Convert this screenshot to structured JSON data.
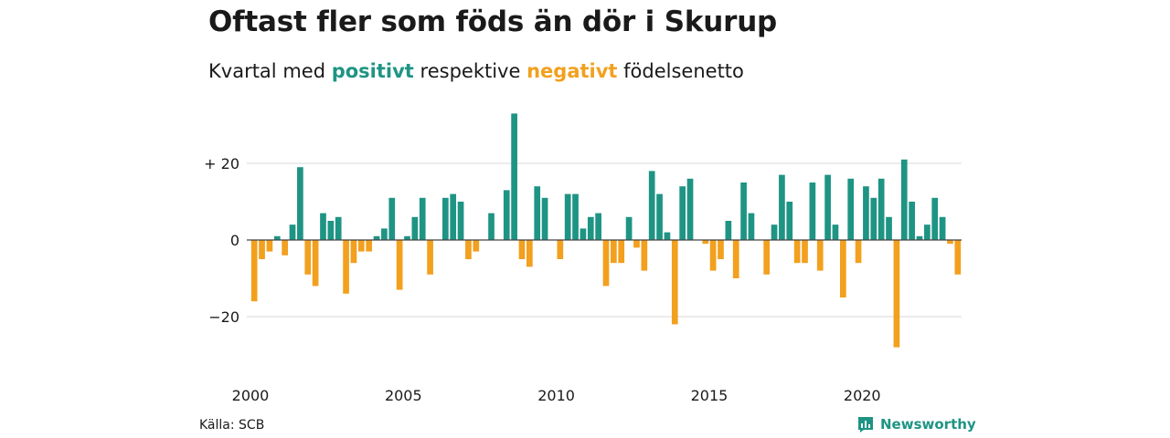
{
  "title": "Oftast fler som föds än dör i Skurup",
  "subtitle": {
    "pre": "Kvartal med",
    "positive": "positivt",
    "mid": "respektive",
    "negative": "negativt",
    "post": "födelsenetto"
  },
  "source": "Källa: SCB",
  "brand": "Newsworthy",
  "colors": {
    "positive": "#1e9484",
    "negative": "#f2a01e",
    "grid": "#d8d8d8",
    "axis": "#444444"
  },
  "chart_data": {
    "type": "bar",
    "x_start": "2000 Q1",
    "frequency": "quarterly",
    "x_ticks": [
      "2000",
      "2005",
      "2010",
      "2015",
      "2020"
    ],
    "y_ticks": [
      {
        "value": 20,
        "label": "+ 20"
      },
      {
        "value": 0,
        "label": "0"
      },
      {
        "value": -20,
        "label": "−20"
      }
    ],
    "ylim": [
      -30,
      34
    ],
    "values": [
      -16,
      -5,
      -3,
      1,
      -4,
      4,
      19,
      -9,
      -12,
      7,
      5,
      6,
      -14,
      -6,
      -3,
      -3,
      1,
      3,
      11,
      -13,
      1,
      6,
      11,
      -9,
      0,
      11,
      12,
      10,
      -5,
      -3,
      0,
      7,
      0,
      13,
      33,
      -5,
      -7,
      14,
      11,
      0,
      -5,
      12,
      12,
      3,
      6,
      7,
      -12,
      -6,
      -6,
      6,
      -2,
      -8,
      18,
      12,
      2,
      -22,
      14,
      16,
      0,
      -1,
      -8,
      -5,
      5,
      -10,
      15,
      7,
      0,
      -9,
      4,
      17,
      10,
      -6,
      -6,
      15,
      -8,
      17,
      4,
      -15,
      16,
      -6,
      14,
      11,
      16,
      6,
      -28,
      21,
      10,
      1,
      4,
      11,
      6,
      -1,
      -9
    ]
  }
}
